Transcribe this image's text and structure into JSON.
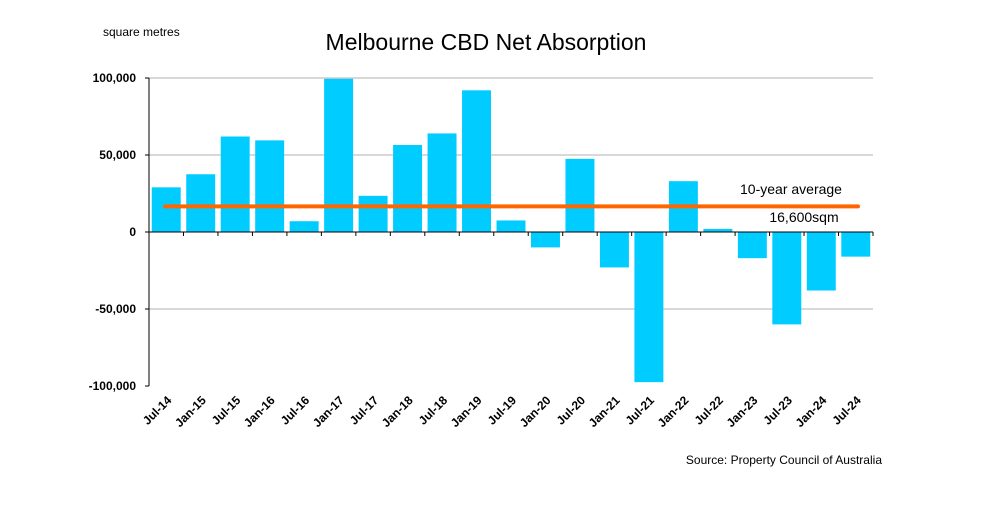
{
  "chart_data": {
    "type": "bar",
    "title": "Melbourne CBD Net Absorption",
    "ylabel": "square metres",
    "xlabel": "",
    "categories": [
      "Jul-14",
      "Jan-15",
      "Jul-15",
      "Jan-16",
      "Jul-16",
      "Jan-17",
      "Jul-17",
      "Jan-18",
      "Jul-18",
      "Jan-19",
      "Jul-19",
      "Jan-20",
      "Jul-20",
      "Jan-21",
      "Jul-21",
      "Jan-22",
      "Jul-22",
      "Jan-23",
      "Jul-23",
      "Jan-24",
      "Jul-24"
    ],
    "values": [
      29000,
      37500,
      62000,
      59500,
      7000,
      99500,
      23500,
      56500,
      64000,
      92000,
      7500,
      -10000,
      47500,
      -23000,
      -97500,
      33000,
      2000,
      -17000,
      -60000,
      -38000,
      -16000
    ],
    "ylim": [
      -100000,
      100000
    ],
    "yticks": [
      100000,
      50000,
      0,
      -50000,
      -100000
    ],
    "ytick_labels": [
      "100,000",
      "50,000",
      "0",
      "-50,000",
      "-100,000"
    ],
    "grid": true,
    "reference_line": {
      "name": "10-year average",
      "value": 16600,
      "label_line1": "10-year average",
      "label_line2": "16,600sqm"
    },
    "source": "Source: Property Council of Australia",
    "colors": {
      "bar": "#00ccff",
      "average": "#ff6600",
      "grid": "#999999",
      "axis": "#000000"
    }
  }
}
